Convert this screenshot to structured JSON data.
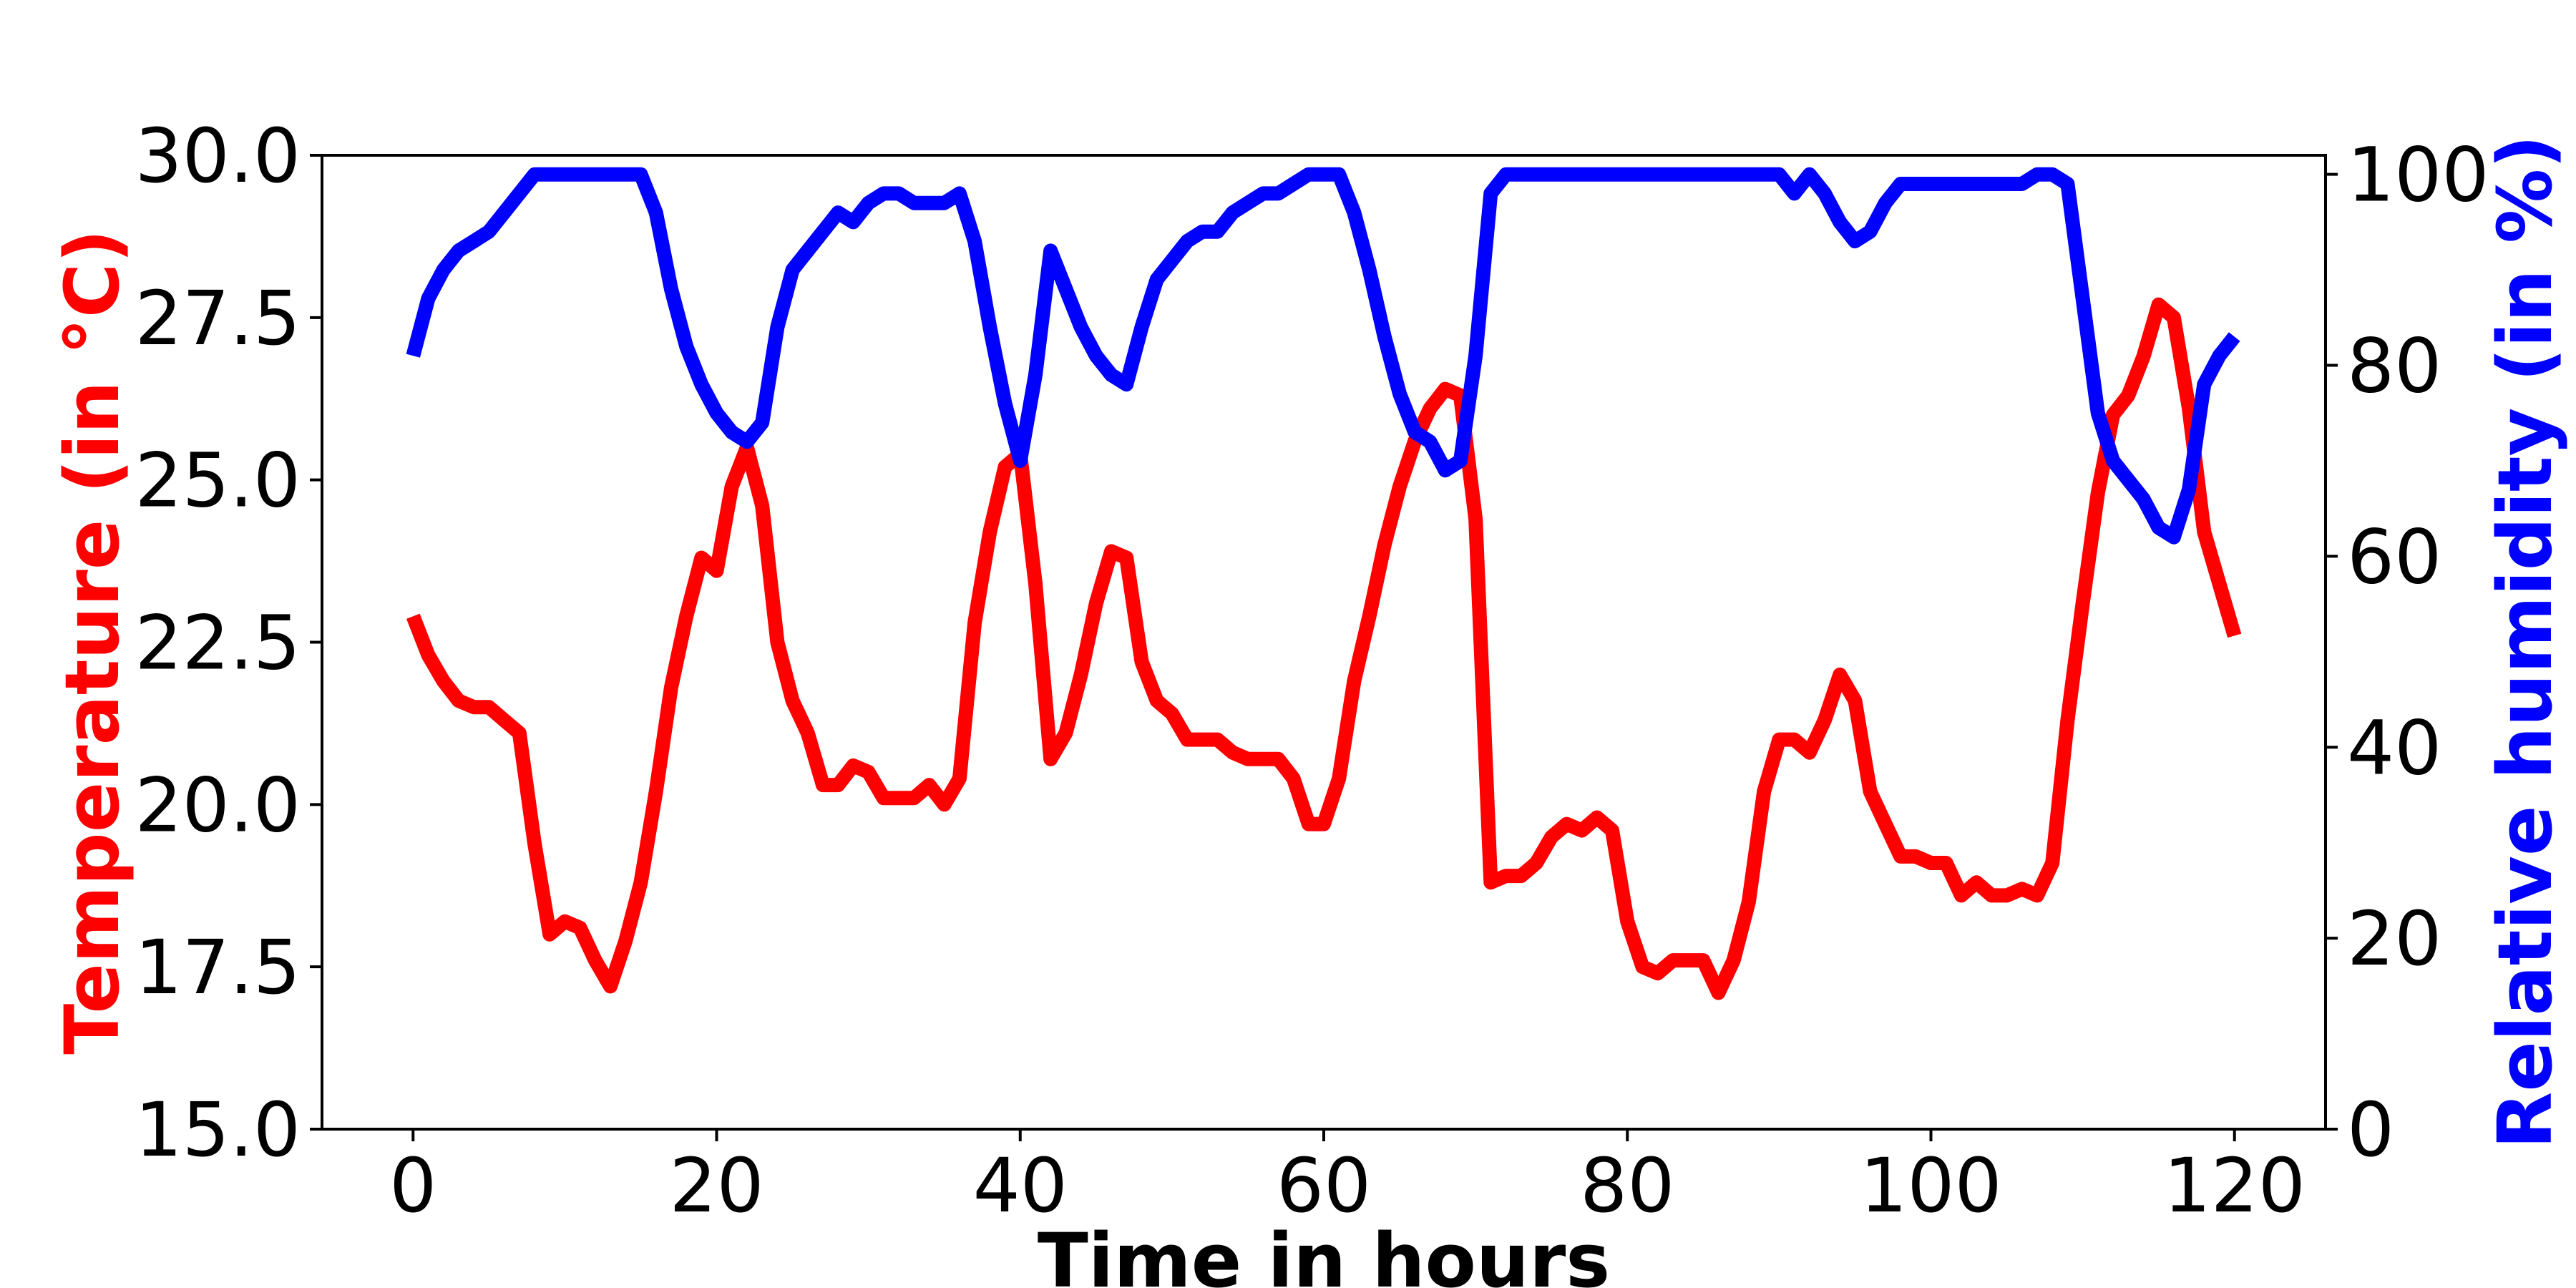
{
  "chart_data": {
    "type": "line",
    "xlabel": "Time in hours",
    "ylabel_left": "Temperature (in °C)",
    "ylabel_right": "Relative humidity (in %)",
    "xlim": [
      -6,
      126
    ],
    "ylim_left": [
      15.0,
      30.0
    ],
    "ylim_right": [
      0,
      102
    ],
    "x_ticks": [
      0,
      20,
      40,
      60,
      80,
      100,
      120
    ],
    "x_tick_labels": [
      "0",
      "20",
      "40",
      "60",
      "80",
      "100",
      "120"
    ],
    "y_left_ticks": [
      15.0,
      17.5,
      20.0,
      22.5,
      25.0,
      27.5,
      30.0
    ],
    "y_left_tick_labels": [
      "15.0",
      "17.5",
      "20.0",
      "22.5",
      "25.0",
      "27.5",
      "30.0"
    ],
    "y_right_ticks": [
      0,
      20,
      40,
      60,
      80,
      100
    ],
    "y_right_tick_labels": [
      "0",
      "20",
      "40",
      "60",
      "80",
      "100"
    ],
    "grid": false,
    "colors": {
      "temperature": "#ff0000",
      "humidity": "#0000ff",
      "axes": "#000000"
    },
    "series": [
      {
        "axis": "left",
        "x": [
          0,
          1,
          2,
          3,
          4,
          5,
          6,
          7,
          8,
          9,
          10,
          11,
          12,
          13,
          14,
          15,
          16,
          17,
          18,
          19,
          20,
          21,
          22,
          23,
          24,
          25,
          26,
          27,
          28,
          29,
          30,
          31,
          32,
          33,
          34,
          35,
          36,
          37,
          38,
          39,
          40,
          41,
          42,
          43,
          44,
          45,
          46,
          47,
          48,
          49,
          50,
          51,
          52,
          53,
          54,
          55,
          56,
          57,
          58,
          59,
          60,
          61,
          62,
          63,
          64,
          65,
          66,
          67,
          68,
          69,
          70,
          71,
          72,
          73,
          74,
          75,
          76,
          77,
          78,
          79,
          80,
          81,
          82,
          83,
          84,
          85,
          86,
          87,
          88,
          89,
          90,
          91,
          92,
          93,
          94,
          95,
          96,
          97,
          98,
          99,
          100,
          101,
          102,
          103,
          104,
          105,
          106,
          107,
          108,
          109,
          110,
          111,
          112,
          113,
          114,
          115,
          116,
          117,
          118,
          119,
          120
        ],
        "values": [
          22.9,
          22.3,
          21.9,
          21.6,
          21.5,
          21.5,
          21.3,
          21.1,
          19.4,
          18.0,
          18.2,
          18.1,
          17.6,
          17.2,
          17.9,
          18.8,
          20.2,
          21.8,
          22.9,
          23.8,
          23.6,
          24.9,
          25.5,
          24.6,
          22.5,
          21.6,
          21.1,
          20.3,
          20.3,
          20.6,
          20.5,
          20.1,
          20.1,
          20.1,
          20.3,
          20.0,
          20.4,
          22.8,
          24.2,
          25.2,
          25.4,
          23.4,
          20.7,
          21.1,
          22.0,
          23.1,
          23.9,
          23.8,
          22.2,
          21.6,
          21.4,
          21.0,
          21.0,
          21.0,
          20.8,
          20.7,
          20.7,
          20.7,
          20.4,
          19.7,
          19.7,
          20.4,
          21.9,
          22.9,
          24.0,
          24.9,
          25.6,
          26.1,
          26.4,
          26.3,
          24.4,
          18.8,
          18.9,
          18.9,
          19.1,
          19.5,
          19.7,
          19.6,
          19.8,
          19.6,
          18.2,
          17.5,
          17.4,
          17.6,
          17.6,
          17.6,
          17.1,
          17.6,
          18.5,
          20.2,
          21.0,
          21.0,
          20.8,
          21.3,
          22.0,
          21.6,
          20.2,
          19.7,
          19.2,
          19.2,
          19.1,
          19.1,
          18.6,
          18.8,
          18.6,
          18.6,
          18.7,
          18.6,
          19.1,
          21.3,
          23.1,
          24.8,
          26.0,
          26.3,
          26.9,
          27.7,
          27.5,
          26.1,
          24.2,
          23.4,
          22.6
        ]
      },
      {
        "axis": "right",
        "x": [
          0,
          1,
          2,
          3,
          4,
          5,
          6,
          7,
          8,
          9,
          10,
          11,
          12,
          13,
          14,
          15,
          16,
          17,
          18,
          19,
          20,
          21,
          22,
          23,
          24,
          25,
          26,
          27,
          28,
          29,
          30,
          31,
          32,
          33,
          34,
          35,
          36,
          37,
          38,
          39,
          40,
          41,
          42,
          43,
          44,
          45,
          46,
          47,
          48,
          49,
          50,
          51,
          52,
          53,
          54,
          55,
          56,
          57,
          58,
          59,
          60,
          61,
          62,
          63,
          64,
          65,
          66,
          67,
          68,
          69,
          70,
          71,
          72,
          73,
          74,
          75,
          76,
          77,
          78,
          79,
          80,
          81,
          82,
          83,
          84,
          85,
          86,
          87,
          88,
          89,
          90,
          91,
          92,
          93,
          94,
          95,
          96,
          97,
          98,
          99,
          100,
          101,
          102,
          103,
          104,
          105,
          106,
          107,
          108,
          109,
          110,
          111,
          112,
          113,
          114,
          115,
          116,
          117,
          118,
          119,
          120
        ],
        "values": [
          81,
          87,
          90,
          92,
          93,
          94,
          96,
          98,
          100,
          100,
          100,
          100,
          100,
          100,
          100,
          100,
          96,
          88,
          82,
          78,
          75,
          73,
          72,
          74,
          84,
          90,
          92,
          94,
          96,
          95,
          97,
          98,
          98,
          97,
          97,
          97,
          98,
          93,
          84,
          76,
          70,
          79,
          92,
          88,
          84,
          81,
          79,
          78,
          84,
          89,
          91,
          93,
          94,
          94,
          96,
          97,
          98,
          98,
          99,
          100,
          100,
          100,
          96,
          90,
          83,
          77,
          73,
          72,
          69,
          70,
          81,
          98,
          100,
          100,
          100,
          100,
          100,
          100,
          100,
          100,
          100,
          100,
          100,
          100,
          100,
          100,
          100,
          100,
          100,
          100,
          100,
          98,
          100,
          98,
          95,
          93,
          94,
          97,
          99,
          99,
          99,
          99,
          99,
          99,
          99,
          99,
          99,
          100,
          100,
          99,
          87,
          75,
          70,
          68,
          66,
          63,
          62,
          67,
          78,
          81,
          83
        ]
      }
    ]
  }
}
